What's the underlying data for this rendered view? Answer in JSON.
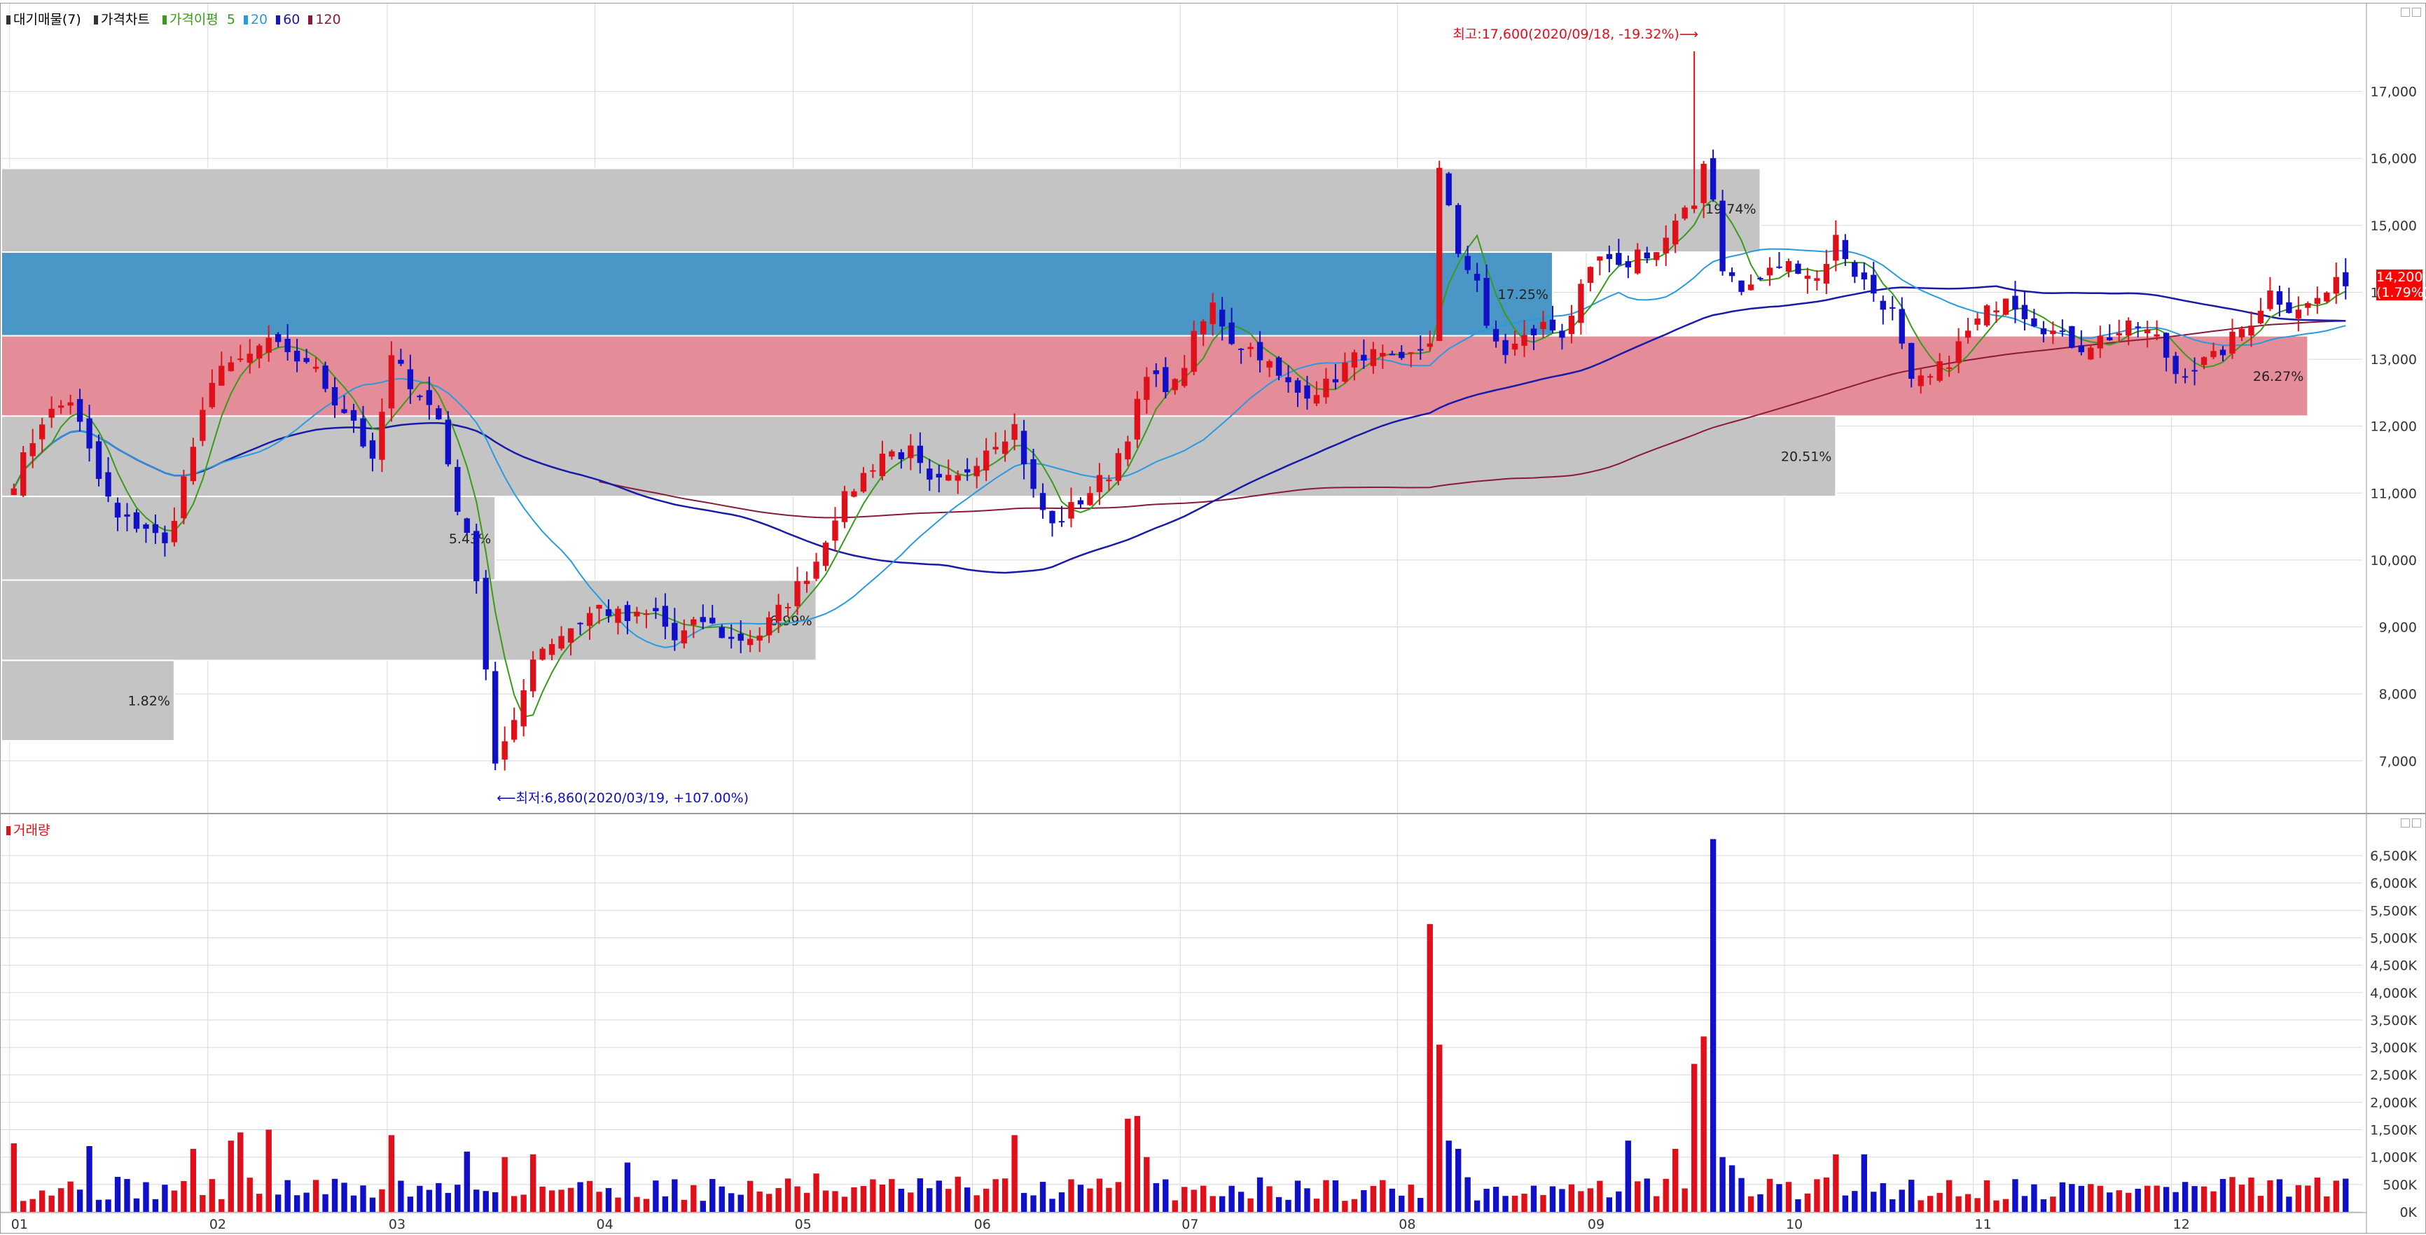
{
  "legend": {
    "title": "대기매물(7)",
    "price_chart": "가격차트",
    "ma_label": "가격이평",
    "ma": [
      {
        "label": "5",
        "color": "#3a9a1a"
      },
      {
        "label": "20",
        "color": "#2a9ae0"
      },
      {
        "label": "60",
        "color": "#1a1aaa"
      },
      {
        "label": "120",
        "color": "#8a1a3a"
      }
    ],
    "volume_label": "거래량"
  },
  "colors": {
    "up": "#e0101a",
    "down": "#1010c8",
    "ma5": "#3a9a1a",
    "ma20": "#2a9ae0",
    "ma60": "#1a1aaa",
    "ma120": "#8a1a3a",
    "axis_text": "#333333",
    "grid": "#d8d8d8"
  },
  "current_price": {
    "value": "14,200",
    "change": "(1.79%)"
  },
  "annotations": {
    "high": "최고:17,600(2020/09/18, -19.32%)⟶",
    "low": "⟵최저:6,860(2020/03/19, +107.00%)"
  },
  "chart_data": [
    {
      "type": "candlestick",
      "ylim": [
        6600,
        18000
      ],
      "yticks": [
        7000,
        8000,
        9000,
        10000,
        11000,
        12000,
        13000,
        14000,
        15000,
        16000,
        17000
      ],
      "ytick_labels": [
        "7,000",
        "8,000",
        "9,000",
        "10,000",
        "11,000",
        "12,000",
        "13,000",
        "14,000",
        "15,000",
        "16,000",
        "17,000"
      ],
      "x_ticks": [
        {
          "label": "01",
          "day": 0
        },
        {
          "label": "02",
          "day": 21
        },
        {
          "label": "03",
          "day": 40
        },
        {
          "label": "04",
          "day": 62
        },
        {
          "label": "05",
          "day": 83
        },
        {
          "label": "06",
          "day": 102
        },
        {
          "label": "07",
          "day": 124
        },
        {
          "label": "08",
          "day": 147
        },
        {
          "label": "09",
          "day": 167
        },
        {
          "label": "10",
          "day": 188
        },
        {
          "label": "11",
          "day": 208
        },
        {
          "label": "12",
          "day": 229
        }
      ],
      "days": 248,
      "supply_zones": [
        {
          "label": "",
          "pct": "",
          "from": 15850,
          "to": 14600,
          "end_day": 185,
          "color": "#c4c4c4"
        },
        {
          "label": "",
          "pct": "17.25%",
          "from": 14600,
          "to": 13350,
          "end_day": 163,
          "color": "#4a96c6"
        },
        {
          "label": "",
          "pct": "26.27%",
          "from": 13350,
          "to": 12150,
          "end_day": 243,
          "color": "#e48c98"
        },
        {
          "label": "",
          "pct": "20.51%",
          "from": 12150,
          "to": 10950,
          "end_day": 193,
          "color": "#c4c4c4"
        },
        {
          "label": "",
          "pct": "5.43%",
          "from": 10950,
          "to": 9700,
          "end_day": 51,
          "color": "#c4c4c4"
        },
        {
          "label": "",
          "pct": "6.99%",
          "from": 9700,
          "to": 8500,
          "end_day": 85,
          "color": "#c4c4c4"
        },
        {
          "label": "",
          "pct": "1.82%",
          "from": 8500,
          "to": 7300,
          "end_day": 17,
          "color": "#c4c4c4"
        }
      ],
      "zone_extra_pct": "19.74%",
      "anchors": [
        [
          0,
          11200
        ],
        [
          3,
          12100
        ],
        [
          6,
          12400
        ],
        [
          9,
          11200
        ],
        [
          11,
          10600
        ],
        [
          14,
          10500
        ],
        [
          16,
          10200
        ],
        [
          19,
          11700
        ],
        [
          22,
          13000
        ],
        [
          24,
          12900
        ],
        [
          27,
          13300
        ],
        [
          29,
          13000
        ],
        [
          31,
          13000
        ],
        [
          34,
          12400
        ],
        [
          36,
          12100
        ],
        [
          38,
          11400
        ],
        [
          40,
          13000
        ],
        [
          43,
          12500
        ],
        [
          45,
          12100
        ],
        [
          47,
          10800
        ],
        [
          49,
          9800
        ],
        [
          51,
          7000
        ],
        [
          53,
          7500
        ],
        [
          55,
          8600
        ],
        [
          57,
          8800
        ],
        [
          60,
          9100
        ],
        [
          62,
          9300
        ],
        [
          65,
          9100
        ],
        [
          68,
          9200
        ],
        [
          70,
          8800
        ],
        [
          73,
          9100
        ],
        [
          76,
          8800
        ],
        [
          79,
          8900
        ],
        [
          82,
          9400
        ],
        [
          85,
          10000
        ],
        [
          87,
          10700
        ],
        [
          89,
          11100
        ],
        [
          92,
          11600
        ],
        [
          95,
          11600
        ],
        [
          97,
          11100
        ],
        [
          100,
          11200
        ],
        [
          103,
          11700
        ],
        [
          106,
          12000
        ],
        [
          108,
          11000
        ],
        [
          110,
          10500
        ],
        [
          113,
          10900
        ],
        [
          116,
          11300
        ],
        [
          118,
          11900
        ],
        [
          120,
          12700
        ],
        [
          123,
          12600
        ],
        [
          125,
          13300
        ],
        [
          127,
          13800
        ],
        [
          129,
          13300
        ],
        [
          132,
          13100
        ],
        [
          134,
          12700
        ],
        [
          136,
          12500
        ],
        [
          139,
          12600
        ],
        [
          141,
          12900
        ],
        [
          143,
          13100
        ],
        [
          145,
          13000
        ],
        [
          147,
          12900
        ],
        [
          150,
          13300
        ],
        [
          151,
          15800
        ],
        [
          152,
          15200
        ],
        [
          153,
          14600
        ],
        [
          155,
          14200
        ],
        [
          156,
          13400
        ],
        [
          158,
          13100
        ],
        [
          160,
          13300
        ],
        [
          162,
          13500
        ],
        [
          164,
          13400
        ],
        [
          166,
          14000
        ],
        [
          168,
          14500
        ],
        [
          170,
          14300
        ],
        [
          172,
          14600
        ],
        [
          174,
          14600
        ],
        [
          176,
          15000
        ],
        [
          178,
          15300
        ],
        [
          179,
          16000
        ],
        [
          180,
          15400
        ],
        [
          181,
          14400
        ],
        [
          183,
          14000
        ],
        [
          185,
          14200
        ],
        [
          187,
          14400
        ],
        [
          189,
          14400
        ],
        [
          191,
          14200
        ],
        [
          193,
          14800
        ],
        [
          195,
          14300
        ],
        [
          197,
          14000
        ],
        [
          199,
          13700
        ],
        [
          201,
          12600
        ],
        [
          203,
          12700
        ],
        [
          205,
          13000
        ],
        [
          207,
          13400
        ],
        [
          209,
          13700
        ],
        [
          211,
          14000
        ],
        [
          213,
          13700
        ],
        [
          215,
          13500
        ],
        [
          217,
          13300
        ],
        [
          219,
          13200
        ],
        [
          221,
          13300
        ],
        [
          223,
          13400
        ],
        [
          225,
          13500
        ],
        [
          227,
          13300
        ],
        [
          229,
          12800
        ],
        [
          231,
          12900
        ],
        [
          233,
          13000
        ],
        [
          235,
          13300
        ],
        [
          237,
          13600
        ],
        [
          239,
          14000
        ],
        [
          241,
          13800
        ],
        [
          243,
          13800
        ],
        [
          245,
          14000
        ],
        [
          247,
          14200
        ]
      ],
      "extreme_high": {
        "day": 178,
        "value": 17600
      },
      "extreme_low": {
        "day": 51,
        "value": 6860
      },
      "ma120_start_day": 62
    },
    {
      "type": "bar",
      "series_name": "거래량",
      "ylim": [
        0,
        7100
      ],
      "yticks": [
        0,
        500,
        1000,
        1500,
        2000,
        2500,
        3000,
        3500,
        4000,
        4500,
        5000,
        5500,
        6000,
        6500
      ],
      "ytick_labels": [
        "0K",
        "500K",
        "1,000K",
        "1,500K",
        "2,000K",
        "2,500K",
        "3,000K",
        "3,500K",
        "4,000K",
        "4,500K",
        "5,000K",
        "5,500K",
        "6,000K",
        "6,500K"
      ],
      "spikes": [
        [
          0,
          1250
        ],
        [
          8,
          1200
        ],
        [
          19,
          1150
        ],
        [
          23,
          1300
        ],
        [
          24,
          1450
        ],
        [
          27,
          1500
        ],
        [
          40,
          1400
        ],
        [
          48,
          1100
        ],
        [
          52,
          1000
        ],
        [
          55,
          1050
        ],
        [
          65,
          900
        ],
        [
          85,
          700
        ],
        [
          106,
          1400
        ],
        [
          118,
          1700
        ],
        [
          119,
          1750
        ],
        [
          120,
          1000
        ],
        [
          150,
          5250
        ],
        [
          151,
          3050
        ],
        [
          152,
          1300
        ],
        [
          153,
          1150
        ],
        [
          171,
          1300
        ],
        [
          176,
          1150
        ],
        [
          178,
          2700
        ],
        [
          179,
          3200
        ],
        [
          180,
          6800
        ],
        [
          181,
          1000
        ],
        [
          182,
          850
        ],
        [
          193,
          1050
        ],
        [
          196,
          1050
        ],
        [
          234,
          600
        ]
      ]
    }
  ]
}
